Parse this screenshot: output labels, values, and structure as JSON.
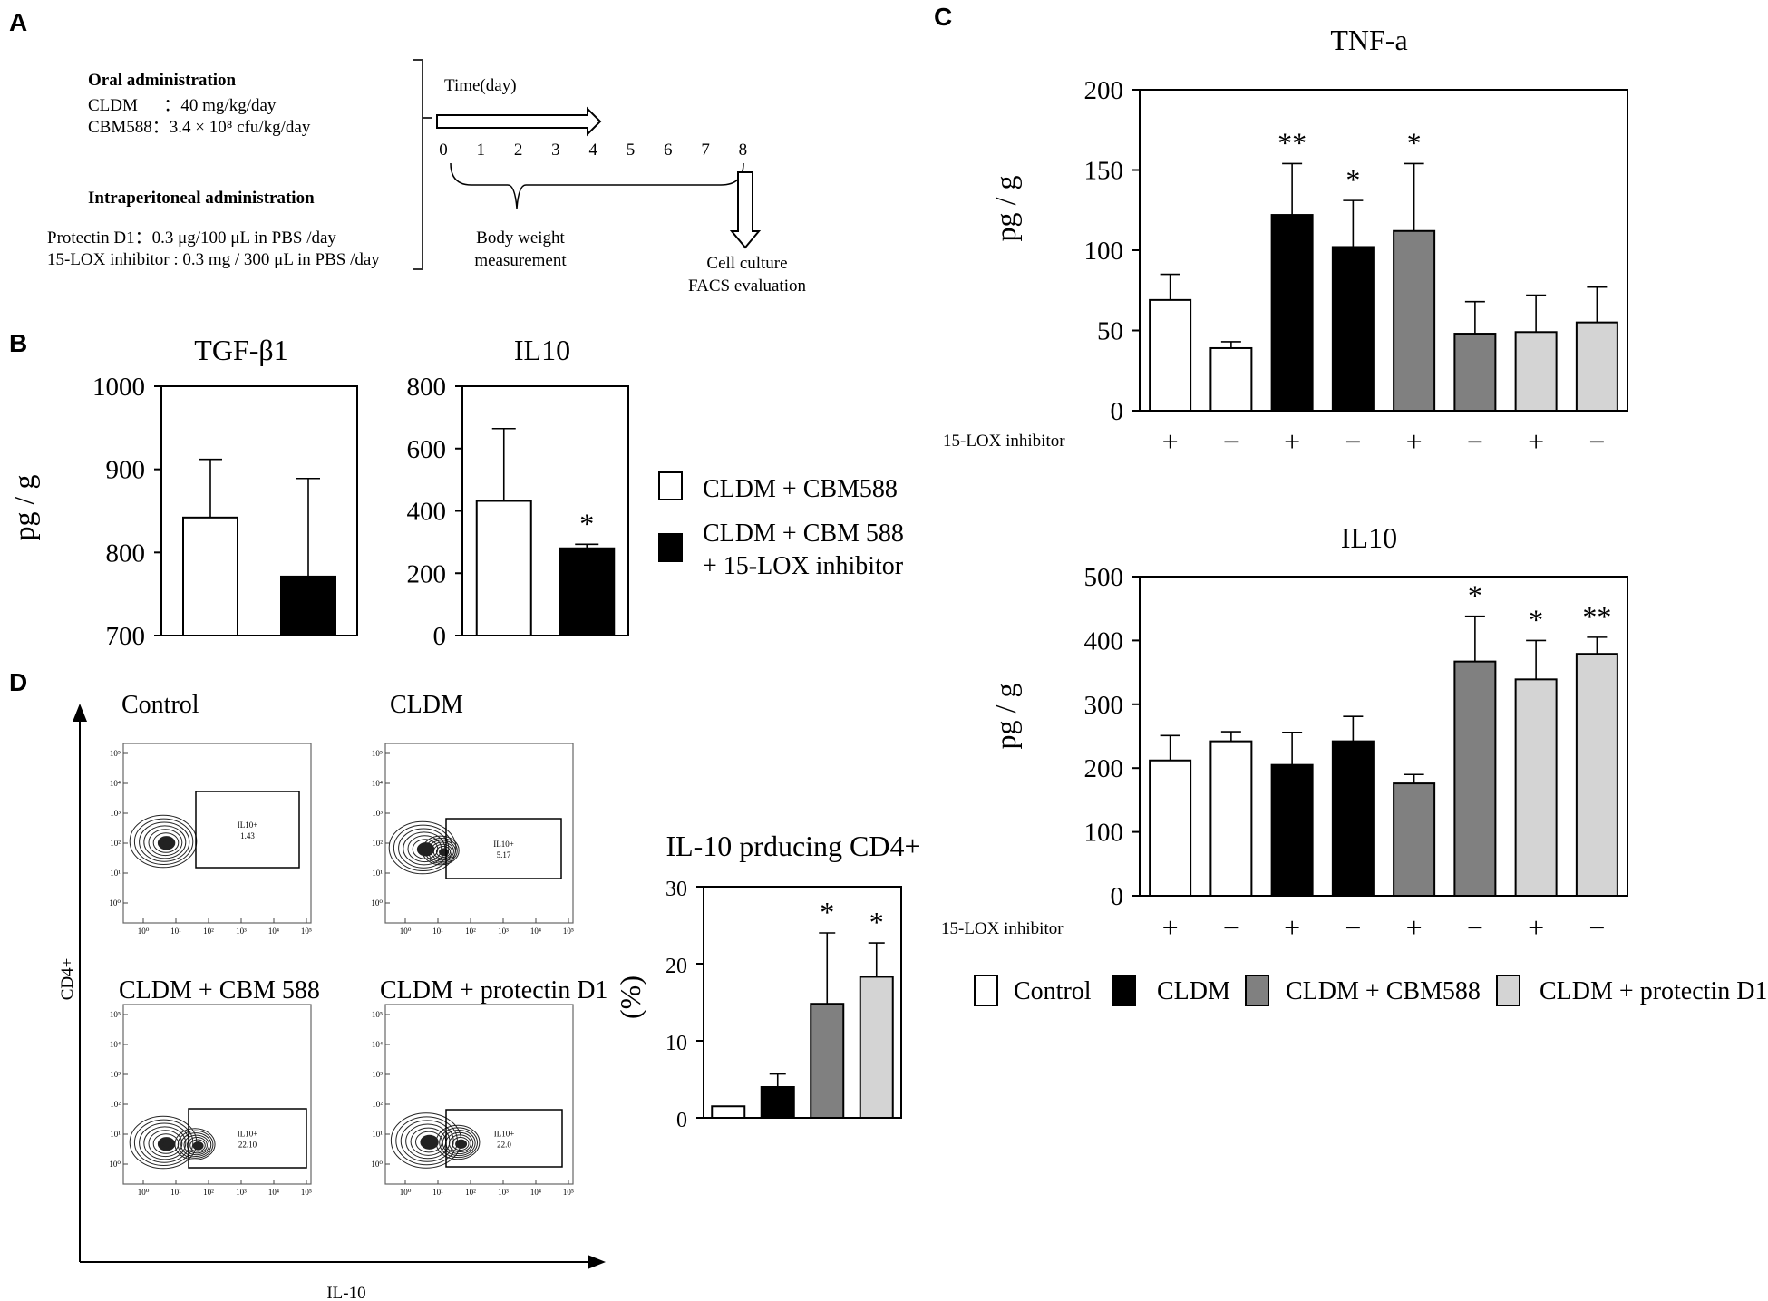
{
  "panel_letters": [
    "A",
    "B",
    "C",
    "D"
  ],
  "colors": {
    "Control": "#ffffff",
    "CLDM": "#000000",
    "CLDM + CBM588": "#808080",
    "CLDM + protectin D1": "#d4d4d4"
  },
  "panelA": {
    "oral_title": "Oral administration",
    "oral_lines": [
      "CLDM      ：40 mg/kg/day",
      "CBM588：3.4 × 10⁸ cfu/kg/day"
    ],
    "ip_title": "Intraperitoneal administration",
    "ip_lines": [
      "Protectin D1：0.3 μg/100 μL in PBS /day",
      "15-LOX inhibitor : 0.3 mg / 300 μL in PBS /day"
    ],
    "time_label": "Time(day)",
    "days": [
      "0",
      "1",
      "2",
      "3",
      "4",
      "5",
      "6",
      "7",
      "8"
    ],
    "bw_label": [
      "Body weight",
      "measurement"
    ],
    "end_label": [
      "Cell culture",
      "FACS evaluation"
    ]
  },
  "panelB_legend": [
    {
      "label": "CLDM + CBM588",
      "color": "#ffffff"
    },
    {
      "label": "CLDM + CBM 588",
      "label2": "+ 15-LOX inhibitor",
      "color": "#000000"
    }
  ],
  "panelC_legend": [
    {
      "label": "Control",
      "color": "#ffffff"
    },
    {
      "label": "CLDM",
      "color": "#000000"
    },
    {
      "label": "CLDM + CBM588",
      "color": "#808080"
    },
    {
      "label": "CLDM + protectin D1",
      "color": "#d4d4d4"
    }
  ],
  "panelD": {
    "plots": [
      {
        "title": "Control",
        "gate_label": "IL10+",
        "gate_value": "1.43"
      },
      {
        "title": "CLDM",
        "gate_label": "IL10+",
        "gate_value": "5.17"
      },
      {
        "title": "CLDM + CBM 588",
        "gate_label": "IL10+",
        "gate_value": "22.10"
      },
      {
        "title": "CLDM + protectin D1",
        "gate_label": "IL10+",
        "gate_value": "22.0"
      }
    ],
    "x_axis_label": "IL-10",
    "y_axis_label": "CD4+",
    "tick_labels": [
      "10⁰",
      "10¹",
      "10²",
      "10³",
      "10⁴",
      "10⁵"
    ]
  },
  "chart_data": [
    {
      "id": "B-TGF",
      "type": "bar",
      "title": "TGF-β1",
      "ylabel": "pg / g",
      "xlabel": "",
      "ylim": [
        700,
        1000
      ],
      "yticks": [
        700,
        800,
        900,
        1000
      ],
      "series": [
        {
          "name": "pg/g",
          "values": [
            842,
            771
          ],
          "errors": [
            70,
            118
          ],
          "colors": [
            "#ffffff",
            "#000000"
          ],
          "sig": [
            "",
            ""
          ]
        }
      ]
    },
    {
      "id": "B-IL10",
      "type": "bar",
      "title": "IL10",
      "ylabel": "",
      "xlabel": "",
      "ylim": [
        0,
        800
      ],
      "yticks": [
        0,
        200,
        400,
        600,
        800
      ],
      "series": [
        {
          "name": "pg/g",
          "values": [
            432,
            280
          ],
          "errors": [
            232,
            13
          ],
          "colors": [
            "#ffffff",
            "#000000"
          ],
          "sig": [
            "",
            "*"
          ]
        }
      ]
    },
    {
      "id": "C-TNF",
      "type": "bar",
      "title": "TNF-a",
      "ylabel": "pg / g",
      "xlabel": "",
      "ylim": [
        0,
        200
      ],
      "yticks": [
        0,
        50,
        100,
        150,
        200
      ],
      "inhibitor_label": "15-LOX inhibitor",
      "inhibitor": [
        "+",
        "−",
        "+",
        "−",
        "+",
        "−",
        "+",
        "−"
      ],
      "series": [
        {
          "name": "pg/g",
          "values": [
            69,
            39,
            122,
            102,
            112,
            48,
            49,
            55
          ],
          "errors": [
            16,
            4,
            32,
            29,
            42,
            20,
            23,
            22
          ],
          "colors": [
            "#ffffff",
            "#ffffff",
            "#000000",
            "#000000",
            "#808080",
            "#808080",
            "#d4d4d4",
            "#d4d4d4"
          ],
          "sig": [
            "",
            "",
            "**",
            "*",
            "*",
            "",
            "",
            ""
          ]
        }
      ]
    },
    {
      "id": "C-IL10",
      "type": "bar",
      "title": "IL10",
      "ylabel": "pg / g",
      "xlabel": "",
      "ylim": [
        0,
        500
      ],
      "yticks": [
        0,
        100,
        200,
        300,
        400,
        500
      ],
      "inhibitor_label": "15-LOX inhibitor",
      "inhibitor": [
        "+",
        "−",
        "+",
        "−",
        "+",
        "−",
        "+",
        "−"
      ],
      "series": [
        {
          "name": "pg/g",
          "values": [
            212,
            242,
            205,
            242,
            176,
            367,
            339,
            379
          ],
          "errors": [
            39,
            15,
            51,
            39,
            14,
            71,
            61,
            26
          ],
          "colors": [
            "#ffffff",
            "#ffffff",
            "#000000",
            "#000000",
            "#808080",
            "#808080",
            "#d4d4d4",
            "#d4d4d4"
          ],
          "sig": [
            "",
            "",
            "",
            "",
            "",
            "*",
            "*",
            "**"
          ]
        }
      ]
    },
    {
      "id": "D-bar",
      "type": "bar",
      "title": "IL-10 prducing CD4+",
      "ylabel": "(%)",
      "xlabel": "",
      "ylim": [
        0,
        30
      ],
      "yticks": [
        0,
        10,
        20,
        30
      ],
      "series": [
        {
          "name": "%",
          "values": [
            1.5,
            4.0,
            14.8,
            18.3
          ],
          "errors": [
            0,
            1.7,
            9.2,
            4.4
          ],
          "colors": [
            "#ffffff",
            "#000000",
            "#808080",
            "#d4d4d4"
          ],
          "sig": [
            "",
            "",
            "*",
            "*"
          ]
        }
      ]
    }
  ]
}
